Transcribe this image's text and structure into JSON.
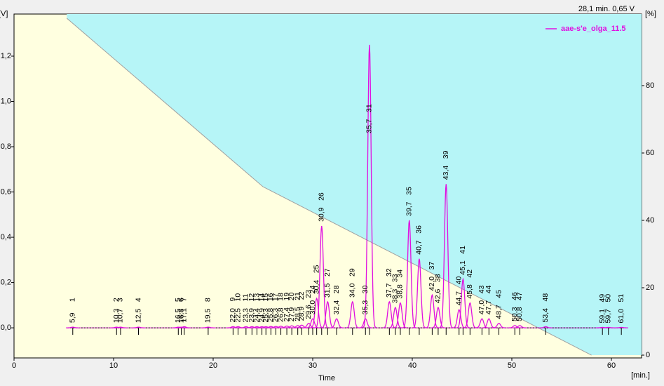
{
  "chart_data": {
    "type": "chromatogram",
    "status": "28,1 min.  0,65 V",
    "x_label": "Time",
    "x_unit": "[min.]",
    "y_unit": "[V]",
    "y2_unit": "[%]",
    "xlim": [
      0,
      63.03
    ],
    "xticks": [
      0,
      10,
      20,
      30,
      40,
      50,
      60
    ],
    "ylim": [
      -0.133,
      1.386
    ],
    "yticks": [
      {
        "value": 0,
        "label": "0,0"
      },
      {
        "value": 0.2,
        "label": "0,2"
      },
      {
        "value": 0.4,
        "label": "0,4"
      },
      {
        "value": 0.6,
        "label": "0,6"
      },
      {
        "value": 0.8,
        "label": "0,8"
      },
      {
        "value": 1.0,
        "label": "1,0"
      },
      {
        "value": 1.2,
        "label": "1,2"
      }
    ],
    "y2lim": [
      -0.83,
      101.25
    ],
    "y2ticks": [
      0,
      20,
      40,
      60,
      80
    ],
    "background": {
      "low": "#ffffe0",
      "high": "#b6f5f7"
    },
    "series": [
      {
        "name": "aae-s'e_olga_11.5",
        "color": "#e010e0",
        "ids": [
          1,
          2,
          3,
          4,
          5,
          6,
          7,
          8,
          9,
          10,
          11,
          12,
          13,
          14,
          15,
          16,
          17,
          18,
          19,
          20,
          21,
          22,
          23,
          24,
          25,
          26,
          27,
          28,
          29,
          30,
          31,
          32,
          33,
          34,
          35,
          36,
          37,
          38,
          39,
          40,
          41,
          42,
          43,
          44,
          45,
          46,
          47,
          48,
          49,
          50,
          51
        ],
        "x": [
          5.9,
          10.3,
          10.7,
          12.5,
          16.5,
          16.8,
          17.1,
          19.5,
          22.0,
          22.5,
          23.3,
          23.9,
          24.4,
          24.9,
          25.3,
          25.8,
          26.3,
          26.8,
          27.4,
          27.9,
          28.5,
          28.9,
          29.6,
          30.0,
          30.4,
          30.9,
          31.5,
          32.4,
          34.0,
          35.3,
          35.7,
          37.7,
          38.3,
          38.8,
          39.7,
          40.7,
          42.0,
          42.6,
          43.4,
          44.7,
          45.1,
          45.8,
          47.0,
          47.7,
          48.7,
          50.3,
          50.8,
          53.4,
          59.1,
          59.7,
          61.0
        ],
        "x_labels": [
          "5,9",
          "10,3",
          "10,7",
          "12,5",
          "16,5",
          "16,8",
          "17,1",
          "19,5",
          "22,0",
          "22,5",
          "23,3",
          "23,9",
          "24,4",
          "24,9",
          "25,3",
          "25,8",
          "26,3",
          "26,8",
          "27,4",
          "27,9",
          "28,5",
          "28,9",
          "29,6",
          "30,0",
          "30,4",
          "30,9",
          "31,5",
          "32,4",
          "34,0",
          "35,3",
          "35,7",
          "37,7",
          "38,3",
          "38,8",
          "39,7",
          "40,7",
          "42,0",
          "42,6",
          "43,4",
          "44,7",
          "45,1",
          "45,8",
          "47,0",
          "47,7",
          "48,7",
          "50,3",
          "50,8",
          "53,4",
          "59,1",
          "59,7",
          "61,0"
        ],
        "values": [
          0.003,
          0.003,
          0.003,
          0.003,
          0.003,
          0.003,
          0.005,
          0.003,
          0.005,
          0.005,
          0.005,
          0.005,
          0.005,
          0.005,
          0.005,
          0.006,
          0.006,
          0.007,
          0.008,
          0.009,
          0.01,
          0.012,
          0.02,
          0.04,
          0.13,
          0.45,
          0.115,
          0.04,
          0.115,
          0.04,
          1.25,
          0.115,
          0.09,
          0.11,
          0.475,
          0.305,
          0.145,
          0.09,
          0.635,
          0.08,
          0.215,
          0.11,
          0.04,
          0.04,
          0.02,
          0.01,
          0.01,
          0.005,
          0.002,
          0.002,
          0.002
        ]
      },
      {
        "name": "gradient",
        "color": "#a0a0a0",
        "axis": "y2",
        "x": [
          5.3,
          25.0,
          58.0
        ],
        "values": [
          100,
          50,
          0
        ]
      }
    ]
  }
}
